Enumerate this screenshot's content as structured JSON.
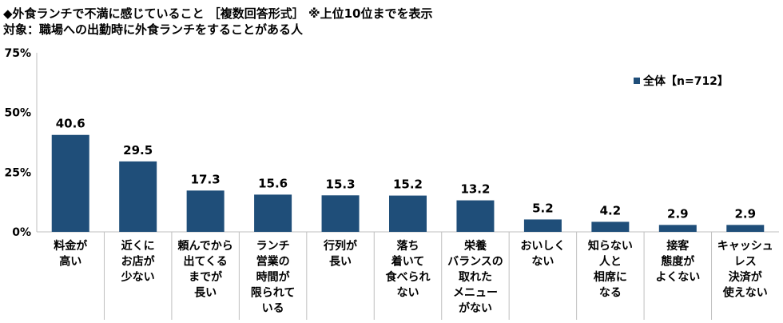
{
  "header": {
    "title": "◆外食ランチで不満に感じていること ［複数回答形式］ ※上位10位までを表示",
    "subtitle": "対象：職場への出勤時に外食ランチをすることがある人"
  },
  "chart_data": {
    "type": "bar",
    "title": "◆外食ランチで不満に感じていること ［複数回答形式］ ※上位10位までを表示",
    "subtitle": "対象：職場への出勤時に外食ランチをすることがある人",
    "categories": [
      [
        "料金が",
        "高い"
      ],
      [
        "近くに",
        "お店が",
        "少ない"
      ],
      [
        "頼んでから",
        "出てくる",
        "までが",
        "長い"
      ],
      [
        "ランチ",
        "営業の",
        "時間が",
        "限られて",
        "いる"
      ],
      [
        "行列が",
        "長い"
      ],
      [
        "落ち",
        "着いて",
        "食べられ",
        "ない"
      ],
      [
        "栄養",
        "バランスの",
        "取れた",
        "メニュー",
        "がない"
      ],
      [
        "おいしく",
        "ない"
      ],
      [
        "知らない",
        "人と",
        "相席に",
        "なる"
      ],
      [
        "接客",
        "態度が",
        "よくない"
      ],
      [
        "キャッシュ",
        "レス",
        "決済が",
        "使えない"
      ]
    ],
    "series": [
      {
        "name": "全体【n=712】",
        "values": [
          40.6,
          29.5,
          17.3,
          15.6,
          15.3,
          15.2,
          13.2,
          5.2,
          4.2,
          2.9,
          2.9
        ],
        "labels": [
          "40.6",
          "29.5",
          "17.3",
          "15.6",
          "15.3",
          "15.2",
          "13.2",
          "5.2",
          "4.2",
          "2.9",
          "2.9"
        ]
      }
    ],
    "yticks": [
      "0%",
      "25%",
      "50%",
      "75%"
    ],
    "ytick_values": [
      0,
      25,
      50,
      75
    ],
    "ylim": [
      0,
      75
    ],
    "legend": "top-right",
    "grid": false,
    "color": "#1f4e79"
  }
}
